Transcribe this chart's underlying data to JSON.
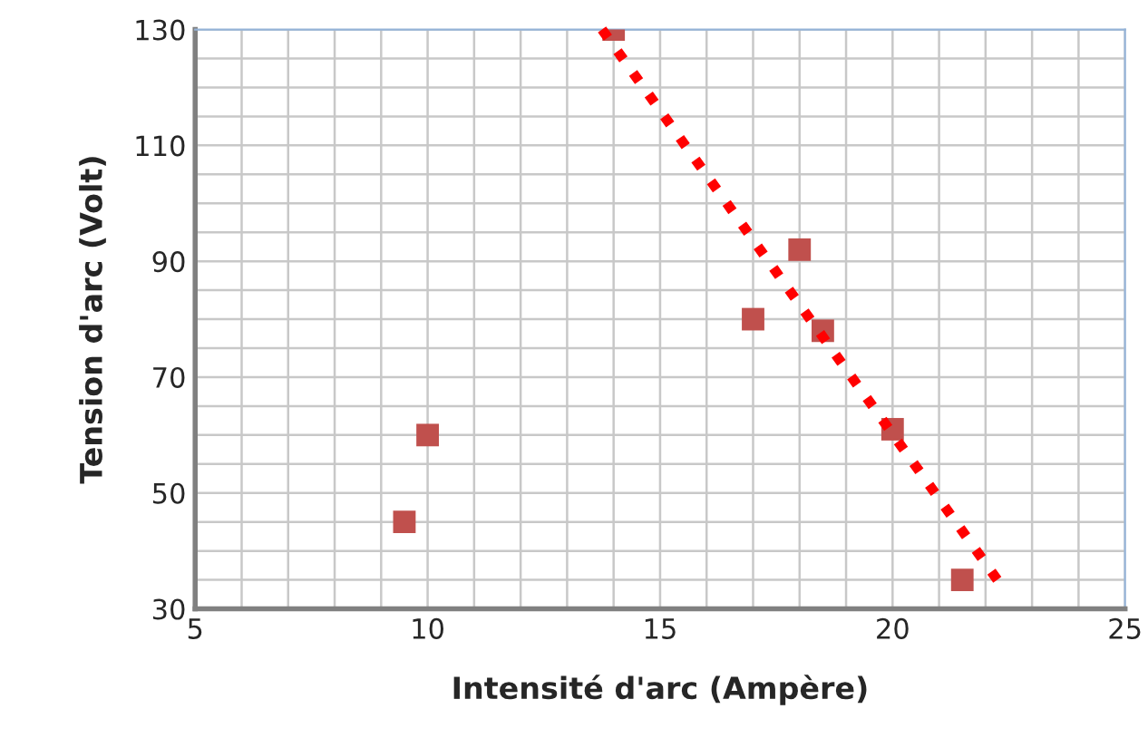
{
  "chart_data": {
    "type": "scatter",
    "xlabel": "Intensité d'arc (Ampère)",
    "ylabel": "Tension d'arc (Volt)",
    "series": [
      {
        "color": "#c0504d",
        "marker": "square",
        "x": [
          9.5,
          10,
          14,
          17,
          18,
          18.5,
          20,
          21.5
        ],
        "values": [
          45,
          60,
          130,
          80,
          92,
          78,
          61,
          35
        ]
      },
      {
        "type": "line",
        "color": "#ff0000",
        "line_style": "dotted",
        "marker": "none",
        "x": [
          13.75,
          22.3
        ],
        "values": [
          130,
          34.5
        ]
      }
    ],
    "xlim": [
      5,
      25
    ],
    "ylim": [
      30,
      130
    ],
    "xticks": [
      5,
      {
        "value": 6,
        "label": null
      },
      {
        "value": 7,
        "label": null
      },
      {
        "value": 8,
        "label": null
      },
      {
        "value": 9,
        "label": null
      },
      10,
      {
        "value": 11,
        "label": null
      },
      {
        "value": 12,
        "label": null
      },
      {
        "value": 13,
        "label": null
      },
      {
        "value": 14,
        "label": null
      },
      15,
      {
        "value": 16,
        "label": null
      },
      {
        "value": 17,
        "label": null
      },
      {
        "value": 18,
        "label": null
      },
      {
        "value": 19,
        "label": null
      },
      20,
      {
        "value": 21,
        "label": null
      },
      {
        "value": 22,
        "label": null
      },
      {
        "value": 23,
        "label": null
      },
      {
        "value": 24,
        "label": null
      },
      25
    ],
    "yticks": [
      30,
      {
        "value": 35,
        "label": null
      },
      {
        "value": 40,
        "label": null
      },
      {
        "value": 45,
        "label": null
      },
      50,
      {
        "value": 55,
        "label": null
      },
      {
        "value": 60,
        "label": null
      },
      {
        "value": 65,
        "label": null
      },
      70,
      {
        "value": 75,
        "label": null
      },
      {
        "value": 80,
        "label": null
      },
      {
        "value": 85,
        "label": null
      },
      90,
      {
        "value": 95,
        "label": null
      },
      {
        "value": 100,
        "label": null
      },
      {
        "value": 105,
        "label": null
      },
      110,
      {
        "value": 115,
        "label": null
      },
      {
        "value": 120,
        "label": null
      },
      {
        "value": 125,
        "label": null
      },
      130
    ],
    "grid": true
  }
}
